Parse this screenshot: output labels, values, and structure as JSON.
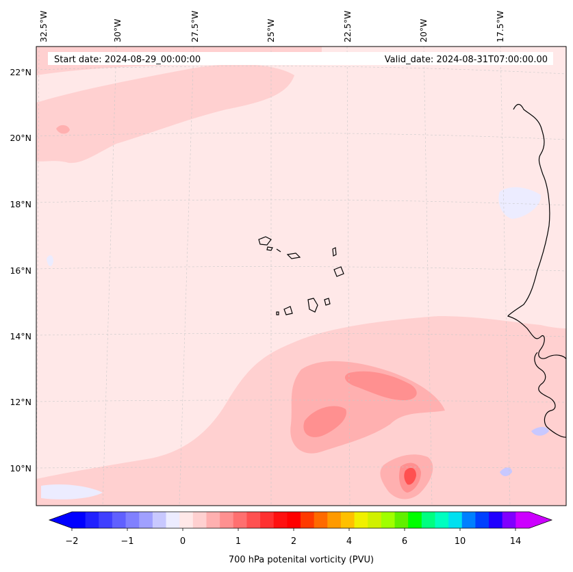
{
  "chart_data": {
    "type": "heatmap",
    "title": "",
    "info": {
      "start": "Start date: 2024-08-29_00:00:00",
      "valid": "Valid_date: 2024-08-31T07:00:00.00"
    },
    "x_axis": {
      "ticks": [
        "32.5°W",
        "30°W",
        "27.5°W",
        "25°W",
        "22.5°W",
        "20°W",
        "17.5°W"
      ],
      "values": [
        -32.5,
        -30,
        -27.5,
        -25,
        -22.5,
        -20,
        -17.5
      ]
    },
    "y_axis": {
      "ticks": [
        "22°N",
        "20°N",
        "18°N",
        "16°N",
        "14°N",
        "12°N",
        "10°N"
      ],
      "values": [
        22,
        20,
        18,
        16,
        14,
        12,
        10
      ]
    },
    "grid": true,
    "colorbar": {
      "label": "700 hPa potenital vorticity (PVU)",
      "ticks": [
        "−2",
        "−1",
        "0",
        "1",
        "2",
        "4",
        "6",
        "10",
        "14"
      ],
      "colors": [
        "#0000ff",
        "#2020ff",
        "#4040ff",
        "#6060ff",
        "#8080ff",
        "#a0a0ff",
        "#c8c8ff",
        "#ececff",
        "#ffe8e8",
        "#ffd0d0",
        "#ffb0b0",
        "#ff9090",
        "#ff7070",
        "#ff5050",
        "#ff3030",
        "#ff1010",
        "#ff0000",
        "#ff3a00",
        "#ff6a00",
        "#ff9a00",
        "#ffc000",
        "#f0f000",
        "#d0f000",
        "#a0ff00",
        "#60f000",
        "#00ff00",
        "#00ff80",
        "#00ffc0",
        "#00e0f0",
        "#0080ff",
        "#0040ff",
        "#2000ff",
        "#8000ff",
        "#cc00ff"
      ],
      "extend_low": "#0000ff",
      "extend_high": "#cc00ff"
    },
    "field_colors": {
      "background": "#ffe8e8",
      "light": "#ffd0d0",
      "medium": "#ffb0b0",
      "strong": "#ff9090",
      "max": "#ff5050",
      "negative": "#ececff",
      "negative2": "#c8c8ff"
    },
    "coastline_color": "#000000"
  }
}
